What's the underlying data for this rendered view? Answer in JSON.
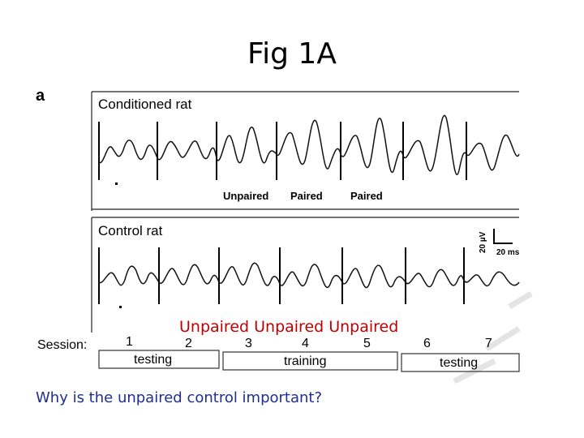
{
  "slide": {
    "title": "Fig 1A",
    "question": "Why is the unpaired control important?",
    "overlay_text": "Unpaired Unpaired Unpaired"
  },
  "figure": {
    "panel_letter": "a",
    "top_trace": {
      "label": "Conditioned rat",
      "stimulus_labels": [
        "Unpaired",
        "Paired",
        "Paired"
      ]
    },
    "bottom_trace": {
      "label": "Control rat"
    },
    "scale_bar": {
      "voltage": "20 µV",
      "time": "20 ms"
    },
    "session": {
      "label": "Session:",
      "numbers": [
        "1",
        "2",
        "3",
        "4",
        "5",
        "6",
        "7"
      ],
      "phases": [
        "testing",
        "training",
        "testing"
      ]
    }
  },
  "colors": {
    "overlay_red": "#c00000",
    "question_blue": "#1f2f8f"
  }
}
